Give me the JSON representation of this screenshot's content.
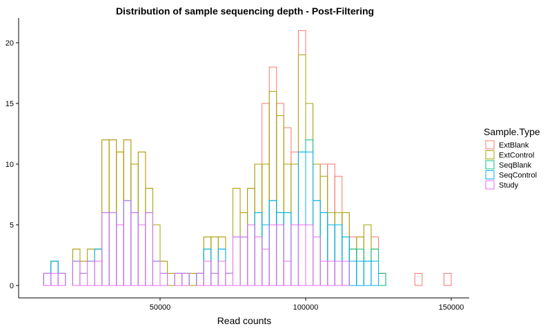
{
  "chart_data": {
    "type": "bar",
    "subtype": "stacked-histogram-outline",
    "title": "Distribution of sample sequencing depth - Post-Filtering",
    "xlabel": "Read counts",
    "ylabel": "",
    "xlim": [
      5000,
      155000
    ],
    "ylim": [
      0,
      21
    ],
    "x_ticks": [
      50000,
      100000,
      150000
    ],
    "x_tick_labels": [
      "50000",
      "100000",
      "150000"
    ],
    "y_ticks": [
      0,
      5,
      10,
      15,
      20
    ],
    "y_tick_labels": [
      "0",
      "5",
      "10",
      "15",
      "20"
    ],
    "grid": false,
    "legend": {
      "title": "Sample.Type",
      "placement": "right"
    },
    "bin_edges": [
      10000,
      12500,
      15000,
      17500,
      20000,
      22500,
      25000,
      27500,
      30000,
      32500,
      35000,
      37500,
      40000,
      42500,
      45000,
      47500,
      50000,
      52500,
      55000,
      57500,
      60000,
      62500,
      65000,
      67500,
      70000,
      72500,
      75000,
      77500,
      80000,
      82500,
      85000,
      87500,
      90000,
      92500,
      95000,
      97500,
      100000,
      102500,
      105000,
      107500,
      110000,
      112500,
      115000,
      117500,
      120000,
      122500,
      125000,
      127500,
      130000,
      132500,
      135000,
      137500,
      140000,
      142500,
      145000,
      147500,
      150000
    ],
    "series": [
      {
        "name": "ExtBlank",
        "color": "#F8766D",
        "values": [
          1,
          2,
          1,
          0,
          3,
          2,
          3,
          3,
          12,
          12,
          11,
          12,
          10,
          11,
          8,
          5,
          2,
          1,
          1,
          1,
          1,
          1,
          4,
          4,
          4,
          1,
          8,
          6,
          8,
          10,
          15,
          18,
          15,
          13,
          11,
          21,
          15,
          10,
          10,
          10,
          9,
          6,
          4,
          4,
          5,
          4,
          1,
          0,
          0,
          0,
          0,
          1,
          0,
          0,
          0,
          1
        ]
      },
      {
        "name": "ExtControl",
        "color": "#A3A500",
        "values": [
          1,
          2,
          1,
          0,
          3,
          2,
          3,
          3,
          12,
          12,
          11,
          12,
          10,
          11,
          8,
          5,
          2,
          1,
          1,
          1,
          1,
          1,
          4,
          4,
          4,
          1,
          8,
          6,
          8,
          10,
          10,
          16,
          14,
          10,
          10,
          19,
          15,
          10,
          9,
          6,
          6,
          6,
          3,
          4,
          5,
          3,
          1,
          0,
          0,
          0,
          0,
          0,
          0,
          0,
          0,
          0
        ]
      },
      {
        "name": "SeqBlank",
        "color": "#00BF7D",
        "values": [
          1,
          2,
          1,
          0,
          2,
          1,
          2,
          3,
          6,
          6,
          5,
          7,
          6,
          5,
          6,
          2,
          1,
          0,
          1,
          1,
          0,
          1,
          3,
          1,
          3,
          1,
          4,
          4,
          5,
          6,
          5,
          7,
          6,
          6,
          5,
          11,
          12,
          7,
          6,
          5,
          5,
          4,
          3,
          3,
          2,
          3,
          1,
          0,
          0,
          0,
          0,
          0,
          0,
          0,
          0,
          0
        ]
      },
      {
        "name": "SeqControl",
        "color": "#00B0F6",
        "values": [
          1,
          2,
          1,
          0,
          2,
          1,
          2,
          3,
          6,
          6,
          5,
          7,
          6,
          5,
          6,
          2,
          1,
          0,
          1,
          1,
          0,
          1,
          3,
          1,
          3,
          1,
          4,
          4,
          5,
          6,
          5,
          7,
          6,
          6,
          5,
          11,
          11,
          7,
          6,
          5,
          5,
          4,
          2,
          2,
          2,
          2,
          0,
          0,
          0,
          0,
          0,
          0,
          0,
          0,
          0,
          0
        ]
      },
      {
        "name": "Study",
        "color": "#E76BF3",
        "values": [
          1,
          1,
          1,
          0,
          2,
          1,
          2,
          2,
          6,
          6,
          5,
          7,
          6,
          5,
          6,
          2,
          1,
          0,
          1,
          1,
          0,
          1,
          2,
          1,
          2,
          1,
          4,
          4,
          5,
          4,
          3,
          5,
          5,
          2,
          5,
          5,
          5,
          4,
          2,
          2,
          2,
          2,
          0,
          0,
          0,
          0,
          0,
          0,
          0,
          0,
          0,
          0,
          0,
          0,
          0,
          0
        ]
      }
    ]
  }
}
